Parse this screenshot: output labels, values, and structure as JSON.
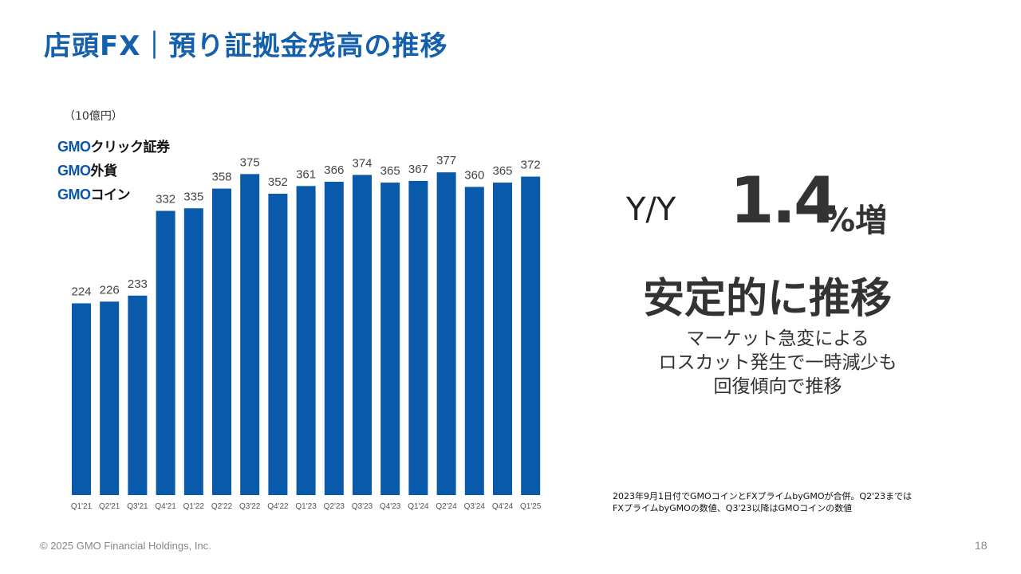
{
  "title": "店頭FX｜預り証拠金残高の推移",
  "logos": {
    "click_prefix": "GMO",
    "click_suffix": "クリック証券",
    "gaika_prefix": "GMO",
    "gaika_suffix": "外貨",
    "coin_prefix": "GMO",
    "coin_suffix": "コイン"
  },
  "colors": {
    "bar": "#0a5aab",
    "title": "#1560ad"
  },
  "chart_data": {
    "type": "bar",
    "unit_label": "（10億円）",
    "categories": [
      "Q1'21",
      "Q2'21",
      "Q3'21",
      "Q4'21",
      "Q1'22",
      "Q2'22",
      "Q3'22",
      "Q4'22",
      "Q1'23",
      "Q2'23",
      "Q3'23",
      "Q4'23",
      "Q1'24",
      "Q2'24",
      "Q3'24",
      "Q4'24",
      "Q1'25"
    ],
    "values": [
      224,
      226,
      233,
      332,
      335,
      358,
      375,
      352,
      361,
      366,
      374,
      365,
      367,
      377,
      360,
      365,
      372
    ],
    "ylim": [
      0,
      420
    ],
    "grid": false,
    "legend": "none"
  },
  "highlight": {
    "yy_label": "Y/Y",
    "value": "1.4",
    "suffix": "%増",
    "headline": "安定的に推移",
    "desc_lines": [
      "マーケット急変による",
      "ロスカット発生で一時減少も",
      "回復傾向で推移"
    ]
  },
  "note_lines": [
    "2023年9月1日付でGMOコインとFXプライムbyGMOが合併。Q2'23までは",
    "FXプライムbyGMOの数値、Q3'23以降はGMOコインの数値"
  ],
  "footer": "© 2025 GMO Financial Holdings, Inc.",
  "page_number": "18"
}
